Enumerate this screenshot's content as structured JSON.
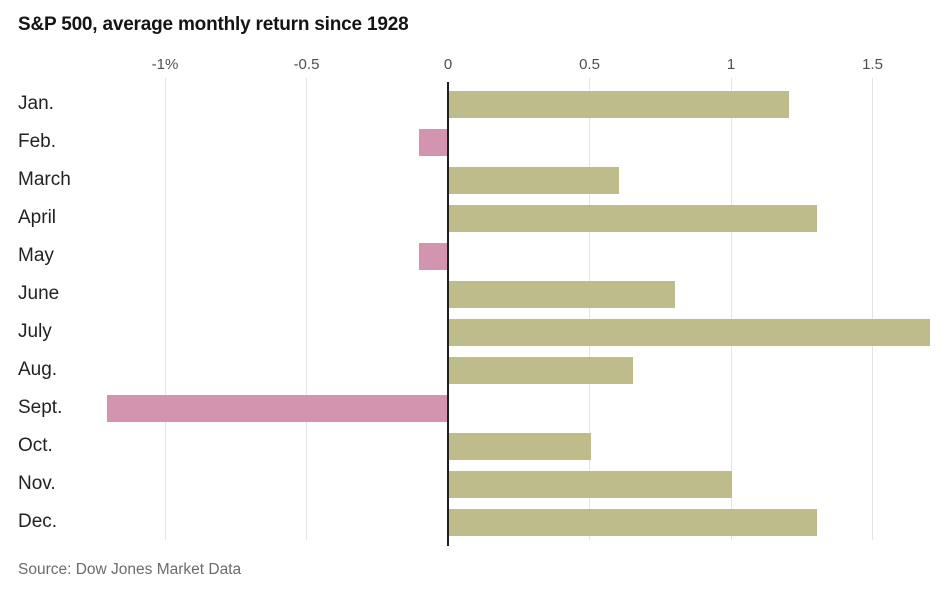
{
  "header": {
    "title": "S&P 500, average monthly return since 1928"
  },
  "footer": {
    "source": "Source: Dow Jones Market Data"
  },
  "chart_data": {
    "type": "bar",
    "orientation": "horizontal",
    "title": "S&P 500, average monthly return since 1928",
    "categories": [
      "Jan.",
      "Feb.",
      "March",
      "April",
      "May",
      "June",
      "July",
      "Aug.",
      "Sept.",
      "Oct.",
      "Nov.",
      "Dec."
    ],
    "values": [
      1.2,
      -0.1,
      0.6,
      1.3,
      -0.1,
      0.8,
      1.7,
      0.65,
      -1.2,
      0.5,
      1.0,
      1.3
    ],
    "value_unit": "percent",
    "xlabel": "",
    "ylabel": "",
    "xlim": [
      -1.585,
      1.75
    ],
    "grid": true,
    "legend": "none",
    "x_ticks": [
      {
        "label": "-1%",
        "value": -1
      },
      {
        "label": "-0.5",
        "value": -0.5
      },
      {
        "label": "0",
        "value": 0
      },
      {
        "label": "0.5",
        "value": 0.5
      },
      {
        "label": "1",
        "value": 1
      },
      {
        "label": "1.5",
        "value": 1.5
      }
    ],
    "colors": {
      "positive_bar": "#bebc8a",
      "negative_bar": "#d294ae",
      "zero_line": "#1f1f1f",
      "gridline": "#e4e4e4",
      "title_text": "#141414",
      "tick_text": "#4f4f4f",
      "category_text": "#222222",
      "source_text": "#6b6b6b"
    },
    "source": "Source: Dow Jones Market Data"
  }
}
